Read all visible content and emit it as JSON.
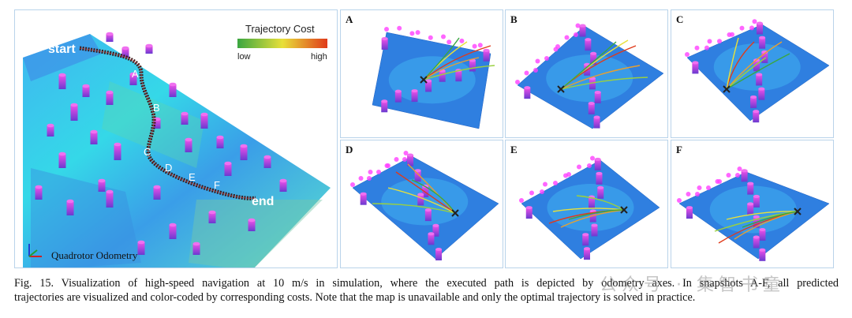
{
  "main": {
    "start_label": "start",
    "end_label": "end",
    "waypoints": [
      "A",
      "B",
      "C",
      "D",
      "E",
      "F"
    ],
    "colorbar": {
      "title": "Trajectory Cost",
      "low": "low",
      "high": "high",
      "gradient": [
        "#3aa640",
        "#e8e03a",
        "#e03a1a"
      ]
    },
    "odometry_legend": "Quadrotor Odometry"
  },
  "snapshots": [
    "A",
    "B",
    "C",
    "D",
    "E",
    "F"
  ],
  "caption": {
    "line1": "Fig. 15. Visualization of high-speed navigation at 10 m/s in simulation, where the executed path is depicted by odometry axes. In snapshots A-F, all predicted",
    "line2": "trajectories are visualized and color-coded by corresponding costs. Note that the map is unavailable and only the optimal trajectory is solved in practice."
  },
  "watermark": "公众号 · 集智书童",
  "colors": {
    "ground_blue": "#2f7fe0",
    "ground_cyan": "#35d0e8",
    "obstacle_magenta": "#e040e0",
    "obstacle_purple": "#7a3ad8",
    "path_dark": "#4a2020"
  }
}
